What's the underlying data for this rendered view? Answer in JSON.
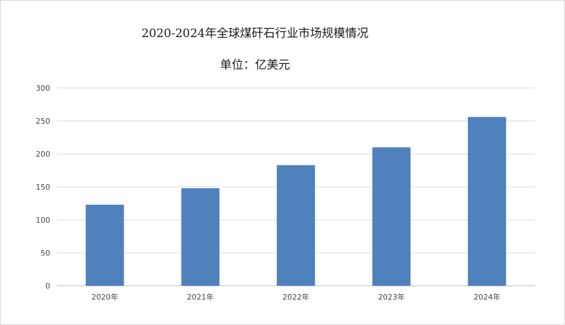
{
  "chart_data": {
    "type": "bar",
    "title": "2020-2024年全球煤矸石行业市场规模情况",
    "subtitle": "单位：亿美元",
    "xlabel": "",
    "ylabel": "",
    "categories": [
      "2020年",
      "2021年",
      "2022年",
      "2023年",
      "2024年"
    ],
    "values": [
      123,
      148,
      183,
      210,
      256
    ],
    "ylim": [
      0,
      300
    ],
    "yticks": [
      0,
      50,
      100,
      150,
      200,
      250,
      300
    ],
    "grid": true,
    "legend": "none",
    "colors": {
      "bar": "#4f81bd",
      "grid": "#d9d9d9",
      "axis": "#bfbfbf"
    }
  }
}
